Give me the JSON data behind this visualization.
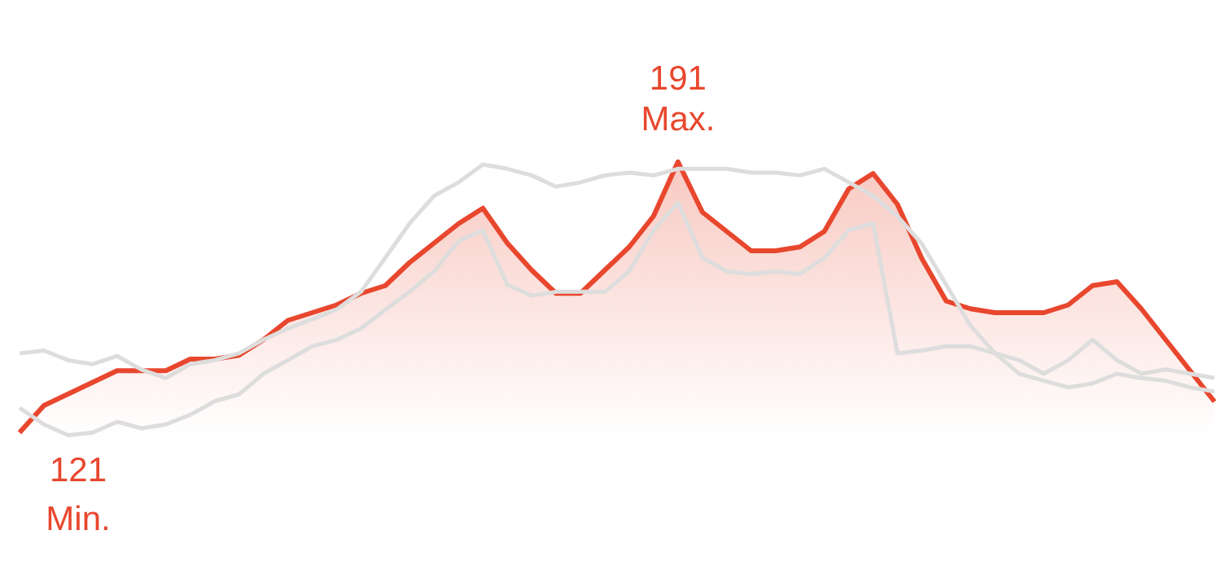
{
  "chart_data": {
    "type": "line",
    "categories": [
      null,
      null,
      null,
      null,
      null,
      null,
      null,
      null,
      null,
      null,
      null,
      null,
      null,
      null,
      null,
      null,
      null,
      null,
      null,
      null,
      null,
      null,
      null,
      null,
      null,
      null,
      null,
      null,
      null,
      null,
      null,
      null,
      null,
      null,
      null,
      null,
      null,
      null,
      null,
      null,
      null,
      null,
      null,
      null,
      null,
      null,
      null,
      null,
      null,
      null
    ],
    "series": [
      {
        "color": "#dddddd",
        "values": [
          141.5,
          142.2,
          139.7,
          138.7,
          140.8,
          137.3,
          135.1,
          138.7,
          139.7,
          141.5,
          145,
          147.9,
          150.3,
          152.8,
          157.4,
          166.2,
          175.1,
          182.2,
          185.7,
          190.3,
          189.2,
          187.5,
          184.6,
          185.7,
          187.5,
          188.2,
          187.5,
          189.2,
          189.2,
          189.2,
          188.2,
          188.2,
          187.5,
          189.2,
          185.7,
          182.2,
          176.9,
          169.8,
          159.2,
          148.6,
          141.5,
          139.7,
          136.2,
          139.7,
          145,
          139.7,
          136.2,
          137.3,
          136.2,
          135.1
        ]
      },
      {
        "color": "#dddddd",
        "values": [
          127.4,
          123.1,
          120.3,
          121,
          123.8,
          122.1,
          123.1,
          125.6,
          129.1,
          130.9,
          136.2,
          139.7,
          143.3,
          145,
          147.9,
          152.8,
          157.4,
          162.7,
          170.5,
          173.3,
          159.2,
          156.4,
          157.4,
          157.4,
          157.4,
          162.7,
          173.3,
          180.4,
          166.2,
          162.7,
          162,
          162.7,
          162,
          166.2,
          173.3,
          175.1,
          141.5,
          142.2,
          143.3,
          143.3,
          141.5,
          136.2,
          134.4,
          132.7,
          133.7,
          136.2,
          135.1,
          134.4,
          132.7,
          131.6
        ]
      },
      {
        "type": "area",
        "color": "#e8472e",
        "values": [
          121,
          128,
          131,
          134,
          137,
          137,
          137,
          140,
          140,
          141,
          145,
          150,
          152,
          154,
          157,
          159,
          165,
          170,
          175,
          179,
          170,
          163,
          157,
          157,
          163,
          169,
          177,
          191,
          178,
          173,
          168,
          168,
          169,
          173,
          184,
          188,
          180,
          166,
          155,
          153,
          152,
          152,
          152,
          154,
          159,
          160,
          153,
          145,
          137,
          129
        ],
        "value_labels": [
          "121\nMin.",
          null,
          null,
          null,
          null,
          null,
          null,
          null,
          null,
          null,
          null,
          null,
          null,
          null,
          null,
          null,
          null,
          null,
          null,
          null,
          null,
          null,
          null,
          null,
          null,
          null,
          null,
          "191\nMax.",
          null,
          null,
          null,
          null,
          null,
          null,
          null,
          null,
          null,
          null,
          null,
          null,
          null,
          null,
          null,
          null,
          null,
          null,
          null,
          null,
          null,
          null
        ]
      }
    ],
    "legend": false,
    "marker": "none"
  }
}
